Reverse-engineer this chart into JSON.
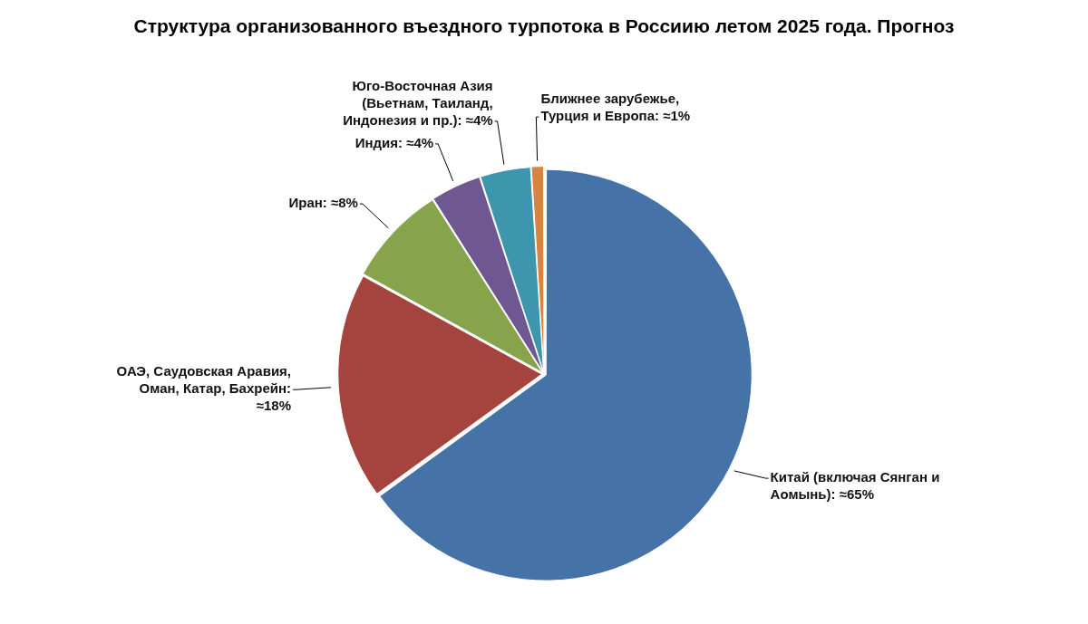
{
  "chart_data": {
    "type": "pie",
    "title": "Структура организованного въездного турпотока в Россиию летом 2025 года. Прогноз",
    "categories": [
      "Китай (включая Сянган и Аомынь): ≈65%",
      "ОАЭ, Саудовская Аравия, Оман, Катар, Бахрейн: ≈18%",
      "Иран: ≈8%",
      "Индия: ≈4%",
      "Юго-Восточная Азия (Вьетнам, Таиланд, Индонезия и пр.): ≈4%",
      "Ближнее зарубежье, Турция и Европа: ≈1%"
    ],
    "values": [
      65,
      18,
      8,
      4,
      4,
      1
    ],
    "colors": [
      "#4572a7",
      "#a5443f",
      "#87a44c",
      "#6f5791",
      "#3e96ae",
      "#d9843e"
    ],
    "legend": false
  }
}
